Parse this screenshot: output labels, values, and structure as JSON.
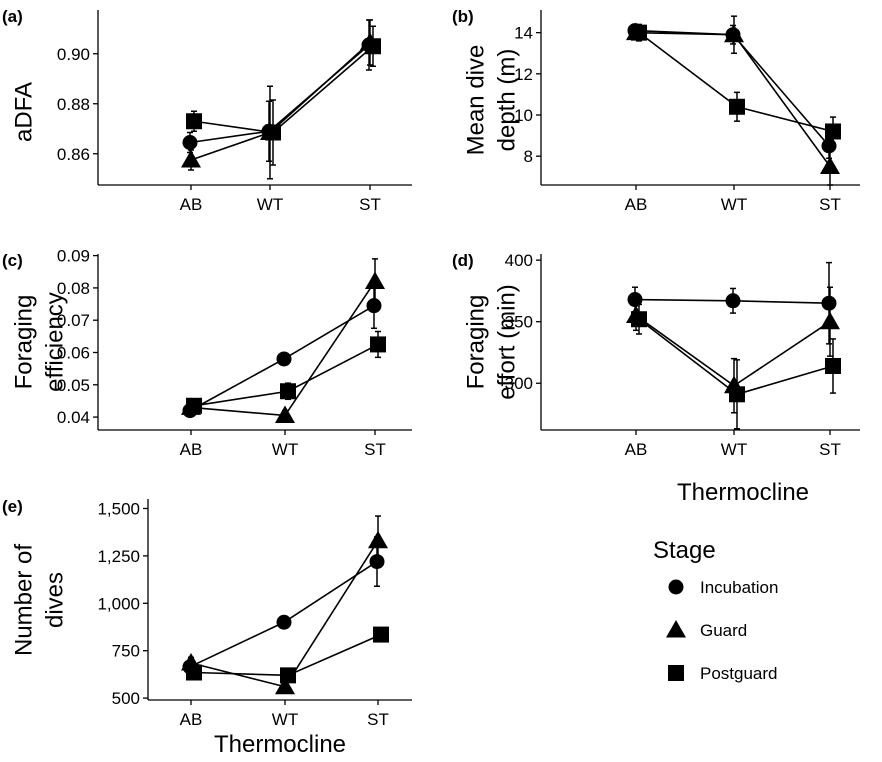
{
  "figure": {
    "shared_xlabel": "Thermocline",
    "legend": {
      "title": "Stage",
      "entries": [
        {
          "label": "Incubation",
          "marker": "circle-icon"
        },
        {
          "label": "Guard",
          "marker": "triangle-icon"
        },
        {
          "label": "Postguard",
          "marker": "square-icon"
        }
      ]
    }
  },
  "chart_data": [
    {
      "id": "a",
      "letter": "(a)",
      "type": "line",
      "ylabel": [
        "aDFA"
      ],
      "xlabel": "",
      "categories": [
        "AB",
        "WT",
        "ST"
      ],
      "ylim": [
        0.8475,
        0.9175
      ],
      "yticks": [
        0.86,
        0.88,
        0.9
      ],
      "ytick_labels": [
        "0.86",
        "0.88",
        "0.90"
      ],
      "series": [
        {
          "name": "Incubation",
          "values": [
            0.8645,
            0.869,
            0.9035
          ],
          "err": [
            0.004,
            0.012,
            0.01
          ]
        },
        {
          "name": "Guard",
          "values": [
            0.8575,
            0.8685,
            0.9045
          ],
          "err": [
            0.004,
            0.0185,
            0.009
          ]
        },
        {
          "name": "Postguard",
          "values": [
            0.873,
            0.8685,
            0.903
          ],
          "err": [
            0.004,
            0.013,
            0.008
          ]
        }
      ]
    },
    {
      "id": "b",
      "letter": "(b)",
      "type": "line",
      "ylabel": [
        "Mean dive",
        "depth (m)"
      ],
      "xlabel": "",
      "categories": [
        "AB",
        "WT",
        "ST"
      ],
      "ylim": [
        6.6,
        15.1
      ],
      "yticks": [
        8,
        10,
        12,
        14
      ],
      "ytick_labels": [
        "8",
        "10",
        "12",
        "14"
      ],
      "series": [
        {
          "name": "Incubation",
          "values": [
            14.1,
            13.9,
            8.5
          ],
          "err": [
            0.3,
            0.45,
            0.6
          ]
        },
        {
          "name": "Guard",
          "values": [
            14.0,
            13.9,
            7.5
          ],
          "err": [
            0.3,
            0.9,
            0.9
          ]
        },
        {
          "name": "Postguard",
          "values": [
            14.0,
            10.4,
            9.2
          ],
          "err": [
            0.4,
            0.7,
            0.7
          ]
        }
      ]
    },
    {
      "id": "c",
      "letter": "(c)",
      "type": "line",
      "ylabel": [
        "Foraging",
        "efficiency"
      ],
      "xlabel": "",
      "categories": [
        "AB",
        "WT",
        "ST"
      ],
      "ylim": [
        0.036,
        0.0905
      ],
      "yticks": [
        0.04,
        0.05,
        0.06,
        0.07,
        0.08,
        0.09
      ],
      "ytick_labels": [
        "0.04",
        "0.05",
        "0.06",
        "0.07",
        "0.08",
        "0.09"
      ],
      "series": [
        {
          "name": "Incubation",
          "values": [
            0.042,
            0.058,
            0.0745
          ],
          "err": [
            0.001,
            0.0015,
            0.007
          ]
        },
        {
          "name": "Guard",
          "values": [
            0.043,
            0.0405,
            0.082
          ],
          "err": [
            0.001,
            0.0015,
            0.007
          ]
        },
        {
          "name": "Postguard",
          "values": [
            0.0435,
            0.048,
            0.0625
          ],
          "err": [
            0.001,
            0.0025,
            0.004
          ]
        }
      ]
    },
    {
      "id": "d",
      "letter": "(d)",
      "type": "line",
      "ylabel": [
        "Foraging",
        "effort (min)"
      ],
      "xlabel": "Thermocline",
      "categories": [
        "AB",
        "WT",
        "ST"
      ],
      "ylim": [
        262,
        405
      ],
      "yticks": [
        300,
        350,
        400
      ],
      "ytick_labels": [
        "300",
        "350",
        "400"
      ],
      "series": [
        {
          "name": "Incubation",
          "values": [
            368,
            367,
            365
          ],
          "err": [
            10,
            10,
            33
          ]
        },
        {
          "name": "Guard",
          "values": [
            355,
            298,
            350
          ],
          "err": [
            12,
            22,
            28
          ]
        },
        {
          "name": "Postguard",
          "values": [
            352,
            291,
            314
          ],
          "err": [
            12,
            28,
            22
          ]
        }
      ]
    },
    {
      "id": "e",
      "letter": "(e)",
      "type": "line",
      "ylabel": [
        "Number of",
        "dives"
      ],
      "xlabel": "Thermocline",
      "categories": [
        "AB",
        "WT",
        "ST"
      ],
      "ylim": [
        490,
        1550
      ],
      "yticks": [
        500,
        750,
        1000,
        1250,
        1500
      ],
      "ytick_labels": [
        "500",
        "750",
        "1,000",
        "1,250",
        "1,500"
      ],
      "series": [
        {
          "name": "Incubation",
          "values": [
            665,
            900,
            1220
          ],
          "err": [
            25,
            30,
            130
          ]
        },
        {
          "name": "Guard",
          "values": [
            685,
            560,
            1330
          ],
          "err": [
            30,
            30,
            130
          ]
        },
        {
          "name": "Postguard",
          "values": [
            635,
            620,
            835
          ],
          "err": [
            25,
            25,
            20
          ]
        }
      ]
    }
  ]
}
